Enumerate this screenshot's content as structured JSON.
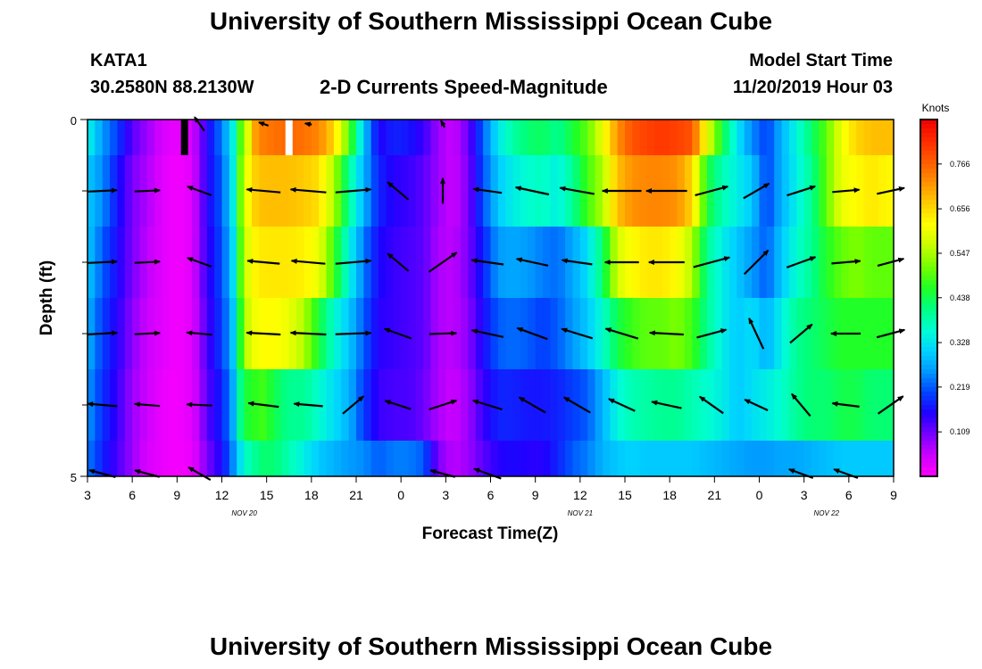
{
  "page": {
    "title_top": "University of Southern Mississippi Ocean Cube",
    "title_bottom": "University of Southern Mississippi Ocean Cube",
    "station_id": "KATA1",
    "station_coords": "30.2580N 88.2130W",
    "chart_title": "2-D Currents Speed-Magnitude",
    "model_start_label": "Model Start Time",
    "model_start_value": "11/20/2019 Hour 03"
  },
  "colors": {
    "colormap": [
      "#ff00ff",
      "#cc00ff",
      "#7700ff",
      "#1f00ff",
      "#0044ff",
      "#0099ff",
      "#00d4ff",
      "#00ffd0",
      "#00ff80",
      "#22ff22",
      "#77ff00",
      "#c8ff00",
      "#ffff00",
      "#ffcc00",
      "#ff9000",
      "#ff5a00",
      "#ff2a00",
      "#ee0000"
    ],
    "arrow": "#000000",
    "frame": "#000000"
  },
  "chart_data": {
    "type": "heatmap",
    "title": "2-D Currents Speed-Magnitude",
    "xlabel": "Forecast Time(Z)",
    "ylabel": "Depth (ft)",
    "colorbar_label": "Knots",
    "colorbar_ticks": [
      "0.766",
      "0.656",
      "0.547",
      "0.438",
      "0.328",
      "0.219",
      "0.109"
    ],
    "colorbar_tick_values": [
      0.766,
      0.656,
      0.547,
      0.438,
      0.328,
      0.219,
      0.109
    ],
    "colorbar_range": [
      0,
      0.875
    ],
    "x_tick_labels": [
      "3",
      "6",
      "9",
      "12",
      "15",
      "18",
      "21",
      "0",
      "3",
      "6",
      "9",
      "12",
      "15",
      "18",
      "21",
      "0",
      "3",
      "6",
      "9"
    ],
    "x_tick_hours": [
      3,
      6,
      9,
      12,
      15,
      18,
      21,
      24,
      27,
      30,
      33,
      36,
      39,
      42,
      45,
      48,
      51,
      54,
      57
    ],
    "date_labels": [
      {
        "text": "NOV  20",
        "hour": 13.5
      },
      {
        "text": "NOV  21",
        "hour": 36
      },
      {
        "text": "NOV  22",
        "hour": 52.5
      }
    ],
    "y_tick_labels": [
      "0",
      "5"
    ],
    "y_range_ft": [
      0,
      5
    ],
    "depth_rows_ft": [
      0.25,
      1.0,
      2.0,
      3.0,
      4.0,
      4.75
    ],
    "time_range_hours": [
      3,
      57
    ],
    "gap_hours": [
      9.5,
      16.5
    ],
    "speed_keyframes": {
      "hours": [
        3,
        4,
        5,
        6,
        7,
        8,
        9,
        10,
        10.5,
        11,
        12,
        12.7,
        13.2,
        13.8,
        14.3,
        14.8,
        15.5,
        16.5,
        17.5,
        18.5,
        19.5,
        20.5,
        21.5,
        22.5,
        23.5,
        24.5,
        25.5,
        26.5,
        27.5,
        28.5,
        29.5,
        30.5,
        31.5,
        32.5,
        33.5,
        34.5,
        35.5,
        36.5,
        37.5,
        38.5,
        39.5,
        40.5,
        41.5,
        42.5,
        43.5,
        44.5,
        45.5,
        46.5,
        47.5,
        48.5,
        49.5,
        50.5,
        51.5,
        52.5,
        53.5,
        54.5,
        55.5,
        57
      ],
      "rows": [
        [
          0.35,
          0.26,
          0.2,
          0.12,
          0.08,
          0.04,
          0.02,
          0.04,
          0.09,
          0.15,
          0.24,
          0.33,
          0.48,
          0.6,
          0.72,
          0.74,
          0.75,
          0.76,
          0.75,
          0.73,
          0.66,
          0.5,
          0.3,
          0.15,
          0.18,
          0.17,
          0.14,
          0.08,
          0.05,
          0.11,
          0.22,
          0.33,
          0.39,
          0.42,
          0.43,
          0.4,
          0.45,
          0.5,
          0.6,
          0.72,
          0.78,
          0.8,
          0.81,
          0.8,
          0.78,
          0.6,
          0.45,
          0.33,
          0.25,
          0.2,
          0.28,
          0.35,
          0.42,
          0.5,
          0.6,
          0.66,
          0.68,
          0.68
        ],
        [
          0.3,
          0.25,
          0.17,
          0.1,
          0.07,
          0.03,
          0.01,
          0.03,
          0.09,
          0.15,
          0.22,
          0.32,
          0.5,
          0.62,
          0.67,
          0.68,
          0.68,
          0.68,
          0.67,
          0.65,
          0.55,
          0.4,
          0.28,
          0.18,
          0.15,
          0.14,
          0.12,
          0.08,
          0.05,
          0.1,
          0.21,
          0.3,
          0.34,
          0.36,
          0.37,
          0.34,
          0.4,
          0.48,
          0.55,
          0.68,
          0.72,
          0.73,
          0.73,
          0.72,
          0.66,
          0.45,
          0.38,
          0.34,
          0.3,
          0.2,
          0.28,
          0.34,
          0.4,
          0.5,
          0.6,
          0.62,
          0.64,
          0.62
        ],
        [
          0.3,
          0.22,
          0.16,
          0.1,
          0.06,
          0.03,
          0.01,
          0.03,
          0.09,
          0.14,
          0.21,
          0.3,
          0.48,
          0.6,
          0.63,
          0.64,
          0.64,
          0.64,
          0.63,
          0.6,
          0.48,
          0.35,
          0.24,
          0.16,
          0.14,
          0.13,
          0.12,
          0.07,
          0.06,
          0.1,
          0.18,
          0.26,
          0.27,
          0.26,
          0.24,
          0.23,
          0.27,
          0.32,
          0.42,
          0.58,
          0.62,
          0.64,
          0.64,
          0.62,
          0.55,
          0.4,
          0.34,
          0.3,
          0.26,
          0.22,
          0.3,
          0.36,
          0.4,
          0.46,
          0.5,
          0.52,
          0.5,
          0.5
        ],
        [
          0.28,
          0.2,
          0.15,
          0.09,
          0.05,
          0.03,
          0.01,
          0.03,
          0.08,
          0.13,
          0.2,
          0.28,
          0.45,
          0.58,
          0.61,
          0.62,
          0.62,
          0.6,
          0.55,
          0.45,
          0.36,
          0.3,
          0.22,
          0.15,
          0.14,
          0.13,
          0.12,
          0.07,
          0.06,
          0.09,
          0.16,
          0.22,
          0.23,
          0.22,
          0.2,
          0.22,
          0.26,
          0.3,
          0.36,
          0.44,
          0.48,
          0.5,
          0.5,
          0.52,
          0.48,
          0.4,
          0.34,
          0.3,
          0.32,
          0.28,
          0.34,
          0.4,
          0.42,
          0.44,
          0.46,
          0.46,
          0.46,
          0.46
        ],
        [
          0.26,
          0.19,
          0.14,
          0.08,
          0.05,
          0.02,
          0.01,
          0.03,
          0.07,
          0.12,
          0.18,
          0.26,
          0.4,
          0.46,
          0.47,
          0.48,
          0.44,
          0.4,
          0.4,
          0.36,
          0.32,
          0.28,
          0.2,
          0.14,
          0.13,
          0.13,
          0.11,
          0.07,
          0.05,
          0.08,
          0.14,
          0.18,
          0.18,
          0.17,
          0.17,
          0.18,
          0.2,
          0.22,
          0.28,
          0.35,
          0.38,
          0.39,
          0.4,
          0.4,
          0.38,
          0.36,
          0.34,
          0.3,
          0.32,
          0.34,
          0.36,
          0.4,
          0.42,
          0.42,
          0.44,
          0.44,
          0.42,
          0.42
        ],
        [
          0.24,
          0.18,
          0.13,
          0.08,
          0.04,
          0.02,
          0.01,
          0.02,
          0.06,
          0.1,
          0.16,
          0.24,
          0.32,
          0.38,
          0.4,
          0.42,
          0.42,
          0.38,
          0.34,
          0.3,
          0.28,
          0.26,
          0.25,
          0.22,
          0.24,
          0.24,
          0.22,
          0.1,
          0.06,
          0.08,
          0.12,
          0.15,
          0.16,
          0.15,
          0.15,
          0.18,
          0.22,
          0.24,
          0.28,
          0.3,
          0.31,
          0.3,
          0.3,
          0.3,
          0.3,
          0.29,
          0.28,
          0.27,
          0.26,
          0.26,
          0.27,
          0.27,
          0.28,
          0.29,
          0.3,
          0.3,
          0.3,
          0.3
        ]
      ]
    },
    "arrows": {
      "hours": [
        4,
        7,
        10.5,
        14.8,
        17.8,
        20.8,
        23.8,
        26.8,
        29.8,
        32.8,
        35.8,
        38.8,
        41.8,
        44.8,
        47.8,
        50.8,
        53.8,
        56.8
      ],
      "rows": [
        [
          null,
          null,
          [
            0.2,
            125
          ],
          [
            0.12,
            160
          ],
          [
            0.08,
            170
          ],
          null,
          null,
          [
            0.09,
            118
          ],
          null,
          null,
          null,
          null,
          null,
          null,
          null,
          null,
          null,
          null
        ],
        [
          [
            0.34,
            3
          ],
          [
            0.3,
            3
          ],
          [
            0.3,
            160
          ],
          [
            0.4,
            175
          ],
          [
            0.42,
            175
          ],
          [
            0.42,
            5
          ],
          [
            0.32,
            140
          ],
          [
            0.3,
            90
          ],
          [
            0.34,
            172
          ],
          [
            0.4,
            168
          ],
          [
            0.41,
            170
          ],
          [
            0.46,
            180
          ],
          [
            0.48,
            180
          ],
          [
            0.4,
            15
          ],
          [
            0.35,
            30
          ],
          [
            0.35,
            18
          ],
          [
            0.32,
            5
          ],
          [
            0.33,
            12
          ]
        ],
        [
          [
            0.34,
            3
          ],
          [
            0.3,
            3
          ],
          [
            0.3,
            160
          ],
          [
            0.38,
            175
          ],
          [
            0.4,
            175
          ],
          [
            0.42,
            5
          ],
          [
            0.32,
            140
          ],
          [
            0.4,
            35
          ],
          [
            0.38,
            172
          ],
          [
            0.38,
            168
          ],
          [
            0.36,
            172
          ],
          [
            0.4,
            180
          ],
          [
            0.42,
            180
          ],
          [
            0.44,
            15
          ],
          [
            0.4,
            45
          ],
          [
            0.36,
            20
          ],
          [
            0.34,
            5
          ],
          [
            0.32,
            15
          ]
        ],
        [
          [
            0.35,
            3
          ],
          [
            0.3,
            3
          ],
          [
            0.3,
            175
          ],
          [
            0.4,
            177
          ],
          [
            0.42,
            177
          ],
          [
            0.42,
            2
          ],
          [
            0.34,
            160
          ],
          [
            0.32,
            2
          ],
          [
            0.38,
            168
          ],
          [
            0.38,
            160
          ],
          [
            0.38,
            163
          ],
          [
            0.4,
            163
          ],
          [
            0.4,
            177
          ],
          [
            0.36,
            15
          ],
          [
            0.4,
            115
          ],
          [
            0.34,
            40
          ],
          [
            0.35,
            180
          ],
          [
            0.34,
            15
          ]
        ],
        [
          [
            0.35,
            175
          ],
          [
            0.3,
            175
          ],
          [
            0.3,
            177
          ],
          [
            0.36,
            173
          ],
          [
            0.34,
            175
          ],
          [
            0.32,
            40
          ],
          [
            0.32,
            162
          ],
          [
            0.34,
            18
          ],
          [
            0.36,
            163
          ],
          [
            0.36,
            150
          ],
          [
            0.36,
            150
          ],
          [
            0.34,
            155
          ],
          [
            0.36,
            168
          ],
          [
            0.34,
            145
          ],
          [
            0.3,
            155
          ],
          [
            0.34,
            130
          ],
          [
            0.32,
            173
          ],
          [
            0.36,
            35
          ]
        ],
        [
          [
            0.32,
            165
          ],
          [
            0.3,
            165
          ],
          [
            0.3,
            150
          ],
          null,
          null,
          null,
          null,
          [
            0.3,
            165
          ],
          [
            0.34,
            160
          ],
          null,
          null,
          null,
          null,
          null,
          null,
          [
            0.3,
            160
          ],
          [
            0.3,
            160
          ],
          null
        ]
      ]
    }
  }
}
